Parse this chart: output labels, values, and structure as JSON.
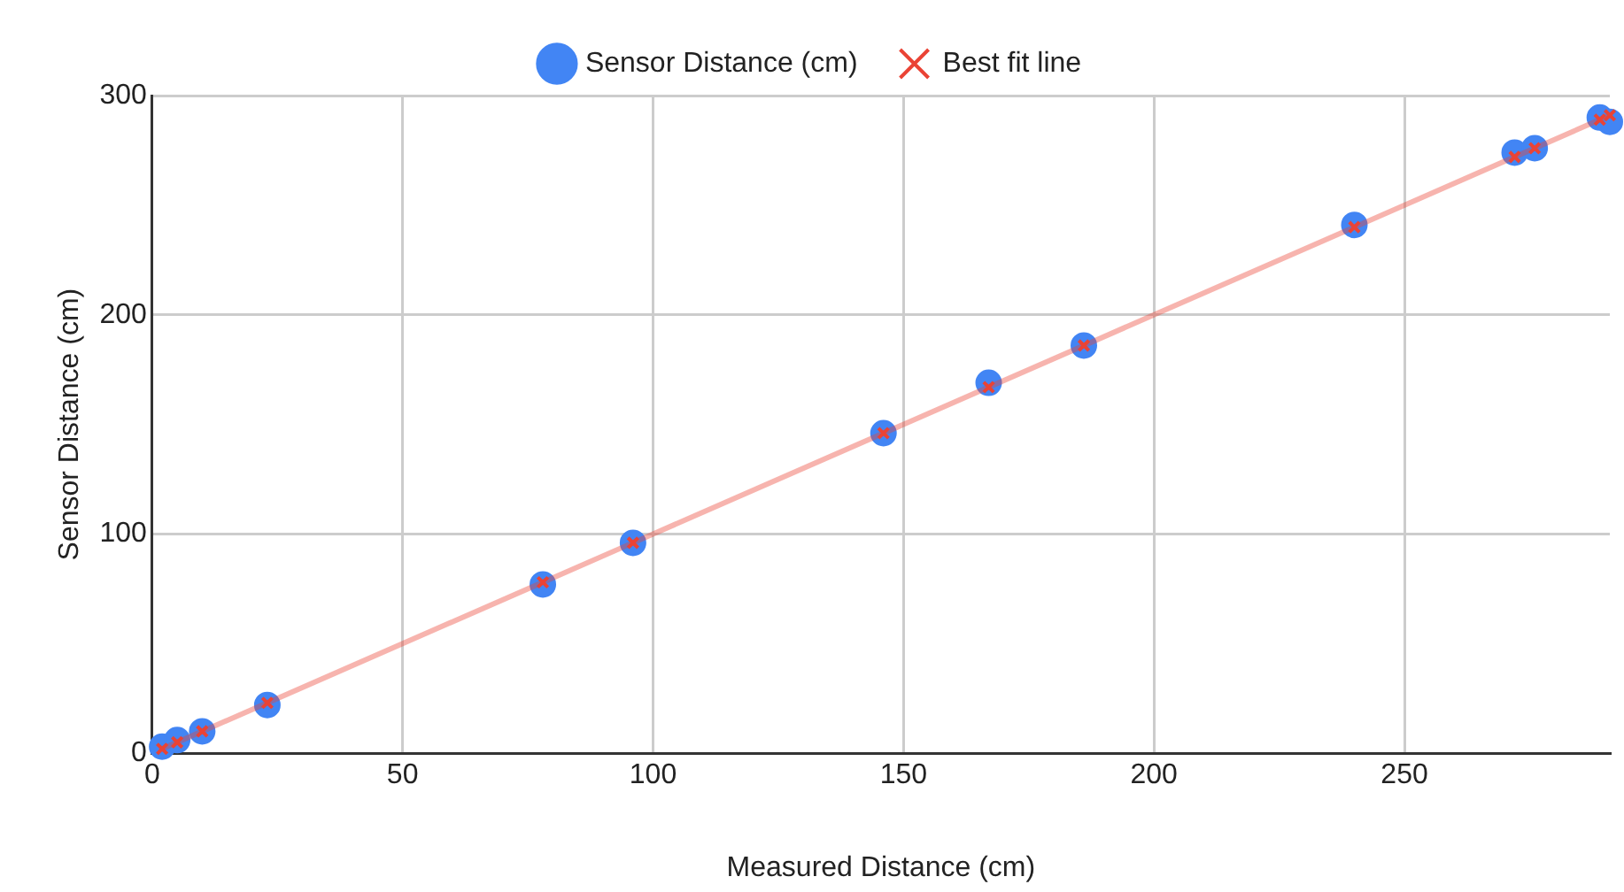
{
  "chart_data": {
    "type": "scatter",
    "xlabel": "Measured Distance (cm)",
    "ylabel": "Sensor Distance (cm)",
    "legend": "top",
    "grid": true,
    "xlim": [
      0,
      291
    ],
    "xticks": [
      0,
      50,
      100,
      150,
      200,
      250
    ],
    "ylim": [
      0,
      300
    ],
    "yticks": [
      0,
      100,
      200,
      300
    ],
    "series": [
      {
        "name": "Sensor Distance (cm)",
        "marker": "circle",
        "color": "#4285f4",
        "x": [
          2,
          5,
          10,
          23,
          78,
          96,
          146,
          167,
          186,
          240,
          272,
          276,
          289,
          291
        ],
        "values": [
          3,
          6,
          10,
          22,
          77,
          96,
          146,
          169,
          186,
          241,
          274,
          276,
          290,
          288
        ]
      },
      {
        "name": "Best fit line",
        "type": "line",
        "marker": "cross",
        "color": "#ea4335",
        "x": [
          2,
          5,
          10,
          23,
          78,
          96,
          146,
          167,
          186,
          240,
          272,
          276,
          289,
          291
        ],
        "values": [
          2,
          5,
          10,
          23,
          78,
          96,
          146,
          167,
          186,
          240,
          272,
          276,
          289,
          291
        ]
      }
    ]
  }
}
